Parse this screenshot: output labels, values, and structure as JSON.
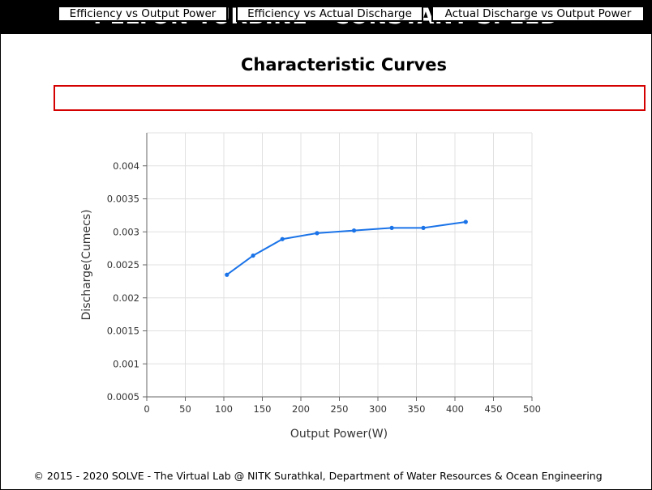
{
  "header": {
    "title": "PELTON TURBINE - CONSTANT SPEED"
  },
  "section": {
    "title": "Characteristic Curves"
  },
  "tabs": [
    {
      "label": "Efficiency vs Output Power"
    },
    {
      "label": "Efficiency vs Actual Discharge"
    },
    {
      "label": "Actual Discharge vs Output Power"
    }
  ],
  "chart_data": {
    "type": "line",
    "xlabel": "Output Power(W)",
    "ylabel": "Discharge(Cumecs)",
    "xlim": [
      0,
      500
    ],
    "ylim": [
      0.0005,
      0.0045
    ],
    "x_ticks": [
      0,
      50,
      100,
      150,
      200,
      250,
      300,
      350,
      400,
      450,
      500
    ],
    "x_tick_labels": [
      "0",
      "50",
      "100",
      "150",
      "200",
      "250",
      "300",
      "350",
      "400",
      "450",
      "500"
    ],
    "y_ticks": [
      0.0005,
      0.001,
      0.0015,
      0.002,
      0.0025,
      0.003,
      0.0035,
      0.004
    ],
    "y_tick_labels": [
      "0.0005",
      "0.001",
      "0.0015",
      "0.002",
      "0.0025",
      "0.003",
      "0.0035",
      "0.004"
    ],
    "grid": true,
    "line_color": "#1a73e8",
    "series": [
      {
        "x": [
          104,
          138,
          176,
          221,
          269,
          318,
          359,
          414
        ],
        "y": [
          0.00235,
          0.00264,
          0.00289,
          0.00298,
          0.00302,
          0.00306,
          0.00306,
          0.00315
        ]
      }
    ]
  },
  "footer": {
    "text": "© 2015 - 2020 SOLVE - The Virtual Lab @ NITK Surathkal, Department of Water Resources & Ocean Engineering"
  }
}
